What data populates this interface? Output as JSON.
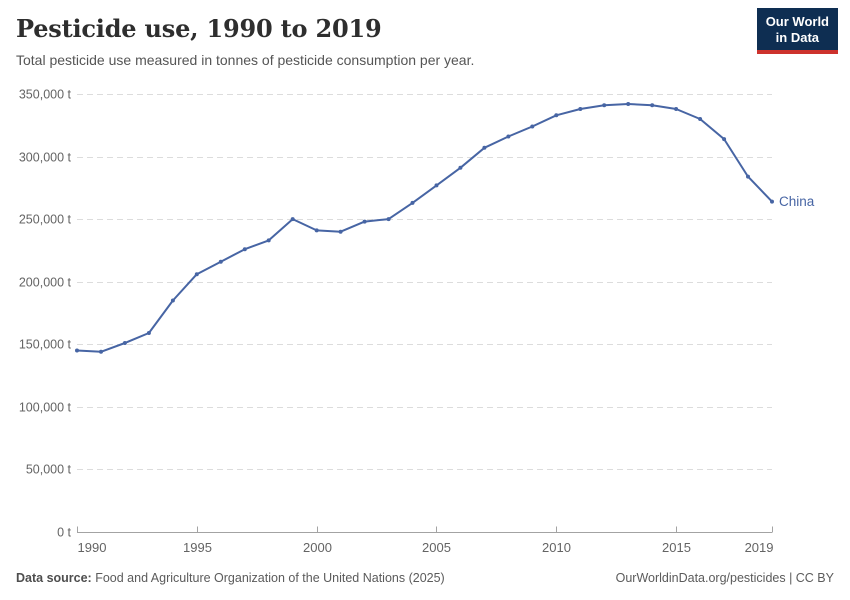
{
  "header": {
    "title": "Pesticide use, 1990 to 2019",
    "subtitle": "Total pesticide use measured in tonnes of pesticide consumption per year.",
    "logo_line1": "Our World",
    "logo_line2": "in Data"
  },
  "chart_data": {
    "type": "line",
    "title": "Pesticide use, 1990 to 2019",
    "ylabel": "",
    "xlabel": "",
    "unit": "t",
    "xlim": [
      1990,
      2019
    ],
    "ylim": [
      0,
      350000
    ],
    "grid": "horizontal-dashed",
    "legend_position": "end-of-line-label",
    "xticks": [
      1990,
      1995,
      2000,
      2005,
      2010,
      2015,
      2019
    ],
    "yticks": [
      0,
      50000,
      100000,
      150000,
      200000,
      250000,
      300000,
      350000
    ],
    "x": [
      1990,
      1991,
      1992,
      1993,
      1994,
      1995,
      1996,
      1997,
      1998,
      1999,
      2000,
      2001,
      2002,
      2003,
      2004,
      2005,
      2006,
      2007,
      2008,
      2009,
      2010,
      2011,
      2012,
      2013,
      2014,
      2015,
      2016,
      2017,
      2018,
      2019
    ],
    "series": [
      {
        "name": "China",
        "color": "#4765a4",
        "values": [
          145000,
          144000,
          151000,
          159000,
          185000,
          206000,
          216000,
          226000,
          233000,
          250000,
          241000,
          240000,
          248000,
          250000,
          263000,
          277000,
          291000,
          307000,
          316000,
          324000,
          333000,
          338000,
          341000,
          342000,
          341000,
          338000,
          330000,
          314000,
          284000,
          264000
        ]
      }
    ]
  },
  "colors": {
    "line": "#4765a4",
    "gridline": "#dcdcdc",
    "axis": "#a3a3a3",
    "logo_bg": "#0e2e52",
    "logo_bar": "#cd322d"
  },
  "footer": {
    "datasource_label": "Data source:",
    "datasource_text": " Food and Agriculture Organization of the United Nations (2025)",
    "rights": "OurWorldinData.org/pesticides | CC BY"
  }
}
